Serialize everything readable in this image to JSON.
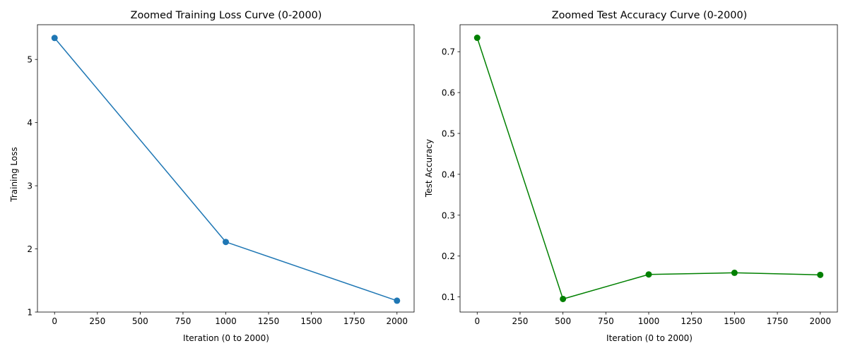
{
  "chart_data": [
    {
      "type": "line",
      "title": "Zoomed Training Loss Curve (0-2000)",
      "xlabel": "Iteration (0 to 2000)",
      "ylabel": "Training Loss",
      "xlim": [
        -100,
        2100
      ],
      "ylim": [
        1.0,
        5.55
      ],
      "xticks": [
        0,
        250,
        500,
        750,
        1000,
        1250,
        1500,
        1750,
        2000
      ],
      "xtick_labels": [
        "0",
        "250",
        "500",
        "750",
        "1000",
        "1250",
        "1500",
        "1750",
        "2000"
      ],
      "yticks": [
        1,
        2,
        3,
        4,
        5
      ],
      "ytick_labels": [
        "1",
        "2",
        "3",
        "4",
        "5"
      ],
      "grid": false,
      "series": [
        {
          "color": "#1f77b4",
          "marker": "circle",
          "x": [
            0,
            1000,
            2000
          ],
          "y": [
            5.34,
            2.11,
            1.18
          ]
        }
      ]
    },
    {
      "type": "line",
      "title": "Zoomed Test Accuracy Curve (0-2000)",
      "xlabel": "Iteration (0 to 2000)",
      "ylabel": "Test Accuracy",
      "xlim": [
        -100,
        2100
      ],
      "ylim": [
        0.063,
        0.766
      ],
      "xticks": [
        0,
        250,
        500,
        750,
        1000,
        1250,
        1500,
        1750,
        2000
      ],
      "xtick_labels": [
        "0",
        "250",
        "500",
        "750",
        "1000",
        "1250",
        "1500",
        "1750",
        "2000"
      ],
      "yticks": [
        0.1,
        0.2,
        0.3,
        0.4,
        0.5,
        0.6,
        0.7
      ],
      "ytick_labels": [
        "0.1",
        "0.2",
        "0.3",
        "0.4",
        "0.5",
        "0.6",
        "0.7"
      ],
      "grid": false,
      "series": [
        {
          "color": "#008000",
          "marker": "circle",
          "x": [
            0,
            500,
            1000,
            1500,
            2000
          ],
          "y": [
            0.734,
            0.095,
            0.155,
            0.159,
            0.154
          ]
        }
      ]
    }
  ]
}
